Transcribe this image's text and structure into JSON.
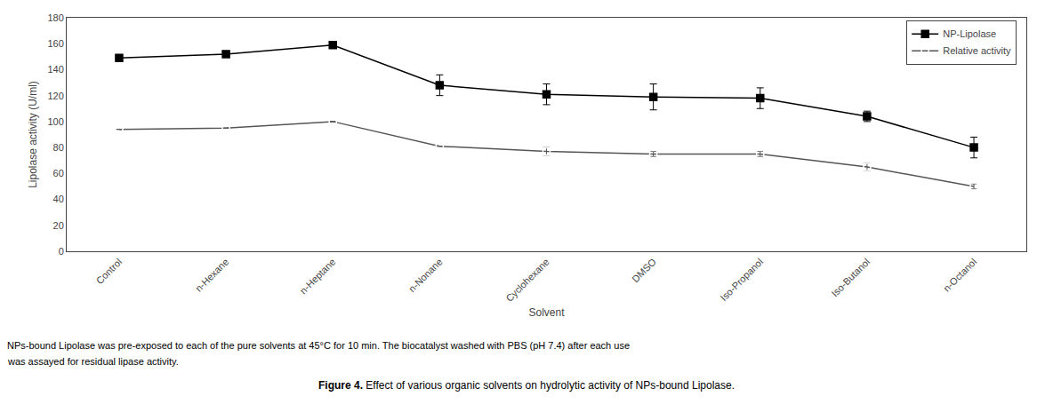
{
  "chart_data": {
    "type": "line",
    "categories": [
      "Control",
      "n-Hexane",
      "n-Heptane",
      "n-Nonane",
      "Cyclohexane",
      "DMSO",
      "Iso-Propanol",
      "Iso-Butanol",
      "n-Octanol"
    ],
    "series": [
      {
        "name": "NP-Lipolase",
        "color": "#000000",
        "marker": "square",
        "line_style": "solid",
        "values": [
          149,
          152,
          159,
          128,
          121,
          119,
          118,
          104,
          80
        ],
        "errors": [
          0,
          0,
          0,
          8,
          8,
          10,
          8,
          4,
          8
        ]
      },
      {
        "name": "Relative activity",
        "color": "#555555",
        "marker": "square-open",
        "line_style": "solid",
        "values": [
          94,
          95,
          100,
          81,
          77,
          75,
          75,
          65,
          50
        ],
        "errors": [
          0,
          0,
          0,
          0,
          3,
          2,
          2,
          3,
          2
        ]
      }
    ],
    "xlabel": "Solvent",
    "ylabel": "Lipolase activity (U/ml)",
    "ylim": [
      0,
      180
    ],
    "yticks": [
      0,
      20,
      40,
      60,
      80,
      100,
      120,
      140,
      160,
      180
    ],
    "grid": false,
    "legend": "upper right",
    "annotations": [
      "NPs-bound Lipolase was pre-exposed to each of the pure solvents at 45°C for 10 min. The biocatalyst washed with PBS (pH 7.4) after each use",
      "was assayed for residual lipase activity.",
      "Figure 4.",
      "Effect of various organic solvents on hydrolytic activity of NPs-bound Lipolase."
    ]
  }
}
